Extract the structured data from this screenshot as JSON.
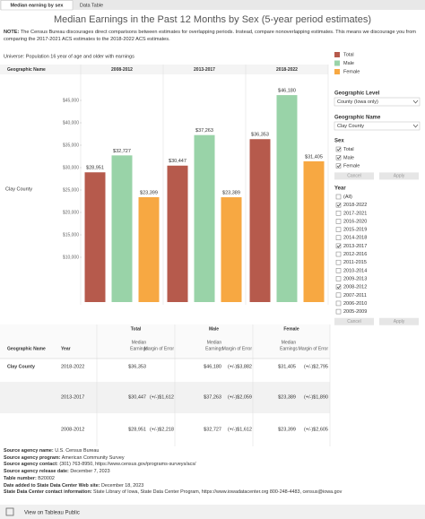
{
  "tabs": [
    "Median earning by sex",
    "Data Table"
  ],
  "title": "Median Earnings in the Past 12 Months by Sex (5-year period estimates)",
  "note": {
    "label": "NOTE:",
    "text": "The Census Bureau discourages direct comparisons between estimates for overlapping periods. Instead, compare nonoverlapping estimates. This means we discourage you from comparing the 2017-2021 ACS estimates to the 2018-2022 ACS estimates."
  },
  "universe": "Universe: Population 16 year of age and older with earnings",
  "chart_data": {
    "type": "bar",
    "header": "Geographic Name",
    "row_label": "Clay County",
    "categories": [
      "2008-2012",
      "2013-2017",
      "2018-2022"
    ],
    "series": [
      {
        "name": "Total",
        "color": "#b65a4c",
        "values": [
          28951,
          30447,
          36353
        ],
        "value_labels": [
          "$28,951",
          "$30,447",
          "$36,353"
        ]
      },
      {
        "name": "Male",
        "color": "#99d3a8",
        "values": [
          32727,
          37263,
          46180
        ],
        "value_labels": [
          "$32,727",
          "$37,263",
          "$46,180"
        ]
      },
      {
        "name": "Female",
        "color": "#f7a842",
        "values": [
          23399,
          23389,
          31405
        ],
        "value_labels": [
          "$23,399",
          "$23,389",
          "$31,405"
        ]
      }
    ],
    "ylim": [
      0,
      50000
    ],
    "yticks": [
      {
        "value": 10000,
        "label": "$10,000"
      },
      {
        "value": 15000,
        "label": "$15,000"
      },
      {
        "value": 20000,
        "label": "$20,000"
      },
      {
        "value": 25000,
        "label": "$25,000"
      },
      {
        "value": 30000,
        "label": "$30,000"
      },
      {
        "value": 35000,
        "label": "$35,000"
      },
      {
        "value": 40000,
        "label": "$40,000"
      },
      {
        "value": 45000,
        "label": "$45,000"
      }
    ]
  },
  "filters": {
    "geo_level": {
      "label": "Geographic Level",
      "value": "County (Iowa only)"
    },
    "geo_name": {
      "label": "Geographic Name",
      "value": "Clay County"
    },
    "sex": {
      "label": "Sex",
      "options": [
        {
          "label": "Total",
          "checked": true
        },
        {
          "label": "Male",
          "checked": true
        },
        {
          "label": "Female",
          "checked": true
        }
      ]
    },
    "year": {
      "label": "Year",
      "options": [
        {
          "label": "(All)",
          "checked": false
        },
        {
          "label": "2018-2022",
          "checked": true
        },
        {
          "label": "2017-2021",
          "checked": false
        },
        {
          "label": "2016-2020",
          "checked": false
        },
        {
          "label": "2015-2019",
          "checked": false
        },
        {
          "label": "2014-2018",
          "checked": false
        },
        {
          "label": "2013-2017",
          "checked": true
        },
        {
          "label": "2012-2016",
          "checked": false
        },
        {
          "label": "2011-2015",
          "checked": false
        },
        {
          "label": "2010-2014",
          "checked": false
        },
        {
          "label": "2009-2013",
          "checked": false
        },
        {
          "label": "2008-2012",
          "checked": true
        },
        {
          "label": "2007-2011",
          "checked": false
        },
        {
          "label": "2006-2010",
          "checked": false
        },
        {
          "label": "2005-2009",
          "checked": false
        }
      ]
    },
    "cancel": "Cancel",
    "apply": "Apply"
  },
  "table": {
    "groups": [
      "Total",
      "Male",
      "Female"
    ],
    "median_header": [
      "Median",
      "Earnings"
    ],
    "moe_header": "Margin of Error",
    "columns": [
      "Geographic Name",
      "Year"
    ],
    "geo": "Clay County",
    "rows": [
      [
        "2018-2022",
        "$36,353",
        null,
        "$46,180",
        "(+/-)$3,882",
        "$31,405",
        "(+/-)$2,795"
      ],
      [
        "2013-2017",
        "$30,447",
        "(+/-)$1,612",
        "$37,263",
        "(+/-)$2,059",
        "$23,389",
        "(+/-)$1,890"
      ],
      [
        "2008-2012",
        "$28,951",
        "(+/-)$2,218",
        "$32,727",
        "(+/-)$1,612",
        "$23,399",
        "(+/-)$2,605"
      ]
    ]
  },
  "sources": [
    {
      "label": "Source agency name:",
      "value": "U.S. Census Bureau"
    },
    {
      "label": "Source agency program:",
      "value": "American Community Survey"
    },
    {
      "label": "Source agency contact:",
      "value": "(301) 763-8950, https://www.census.gov/programs-surveys/acs/"
    },
    {
      "label": "Source agency release date:",
      "value": "December 7, 2023"
    },
    {
      "label": "Table number:",
      "value": "B20002"
    },
    {
      "label": "Date added to State Data Center Web site:",
      "value": "December 18, 2023"
    },
    {
      "label": "State Data Center contact information:",
      "value": "State Library of Iowa, State Data Center Program, https://www.iowadatacenter.org 800-248-4483, census@iowa.gov"
    }
  ],
  "footer": "View on Tableau Public"
}
